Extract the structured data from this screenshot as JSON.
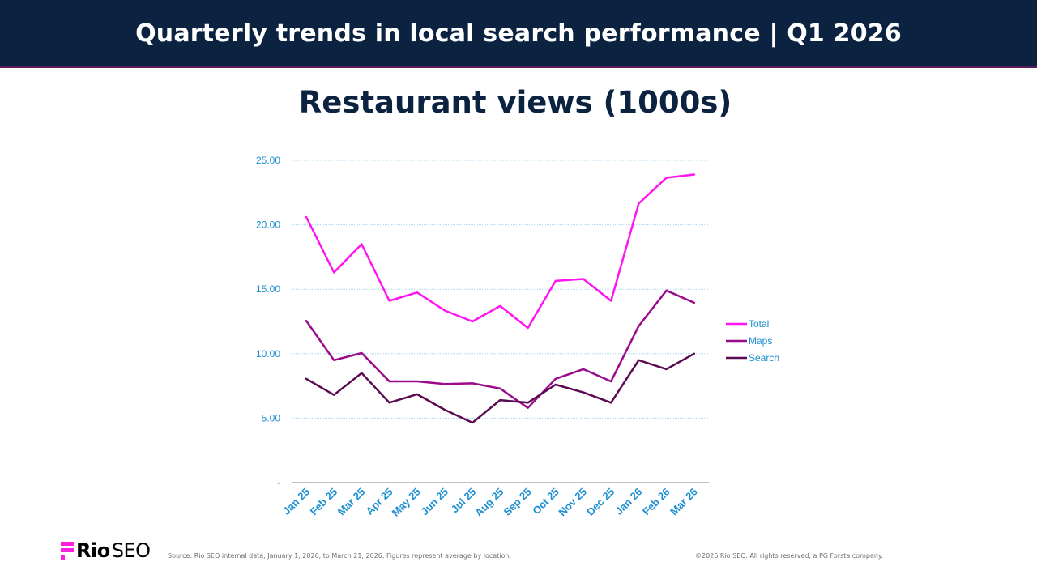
{
  "header": {
    "title": "Quarterly trends in local search performance  |  Q1 2026"
  },
  "chart_data": {
    "type": "line",
    "title": "Restaurant views (1000s)",
    "categories": [
      "Jan 25",
      "Feb 25",
      "Mar 25",
      "Apr 25",
      "May 25",
      "Jun 25",
      "Jul 25",
      "Aug 25",
      "Sep 25",
      "Oct 25",
      "Nov 25",
      "Dec 25",
      "Jan 26",
      "Feb 26",
      "Mar 26"
    ],
    "ylim": [
      0,
      25
    ],
    "yticks": [
      0,
      5,
      10,
      15,
      20,
      25
    ],
    "ytick_labels": [
      "-",
      "5.00",
      "10.00",
      "15.00",
      "20.00",
      "25.00"
    ],
    "grid": true,
    "legend_position": "right",
    "series": [
      {
        "name": "Total",
        "color": "#ff14f0",
        "values": [
          20.6,
          16.3,
          18.5,
          14.1,
          14.75,
          13.35,
          12.5,
          13.7,
          12.0,
          15.65,
          15.8,
          14.1,
          21.65,
          23.65,
          23.9
        ]
      },
      {
        "name": "Maps",
        "color": "#9b0a8a",
        "values": [
          12.55,
          9.5,
          10.05,
          7.85,
          7.85,
          7.65,
          7.7,
          7.3,
          5.8,
          8.05,
          8.8,
          7.85,
          12.15,
          14.9,
          13.95
        ]
      },
      {
        "name": "Search",
        "color": "#5a0a52",
        "values": [
          8.05,
          6.8,
          8.5,
          6.2,
          6.85,
          5.65,
          4.65,
          6.4,
          6.2,
          7.6,
          7.0,
          6.2,
          9.5,
          8.8,
          10.0
        ]
      }
    ]
  },
  "footer": {
    "logo_text_bold": "Rio",
    "logo_text_light": "SEO",
    "source": "Source: Rio SEO internal data, January 1, 2026, to March 21, 2026. Figures represent average by location.",
    "copyright": "©2026 Rio SEO. All rights reserved, a PG Forsta company."
  }
}
